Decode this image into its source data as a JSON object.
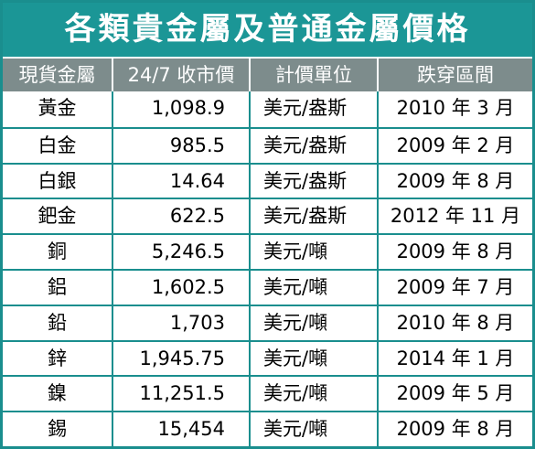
{
  "title": "各類貴金屬及普通金屬價格",
  "headers": [
    "現貨金屬",
    "24/7 收市價",
    "計價單位",
    "跌穿區間"
  ],
  "rows": [
    {
      "metal": "黃金",
      "price": "1,098.9",
      "unit": "美元/盎斯",
      "range": "2010 年 3 月"
    },
    {
      "metal": "白金",
      "price": "985.5",
      "unit": "美元/盎斯",
      "range": "2009 年 2 月"
    },
    {
      "metal": "白銀",
      "price": "14.64",
      "unit": "美元/盎斯",
      "range": "2009 年 8 月"
    },
    {
      "metal": "鈀金",
      "price": "622.5",
      "unit": "美元/盎斯",
      "range": "2012 年 11 月"
    },
    {
      "metal": "銅",
      "price": "5,246.5",
      "unit": "美元/噸",
      "range": "2009 年 8 月"
    },
    {
      "metal": "鋁",
      "price": "1,602.5",
      "unit": "美元/噸",
      "range": "2009 年 7 月"
    },
    {
      "metal": "鉛",
      "price": "1,703",
      "unit": "美元/噸",
      "range": "2010 年 8 月"
    },
    {
      "metal": "鋅",
      "price": "1,945.75",
      "unit": "美元/噸",
      "range": "2014 年 1 月"
    },
    {
      "metal": "鎳",
      "price": "11,251.5",
      "unit": "美元/噸",
      "range": "2009 年 5 月"
    },
    {
      "metal": "錫",
      "price": "15,454",
      "unit": "美元/噸",
      "range": "2009 年 8 月"
    }
  ],
  "colors": {
    "title_bg": "#1b9696",
    "header_bg": "#7d8c8c",
    "border": "#1a8e8e"
  }
}
